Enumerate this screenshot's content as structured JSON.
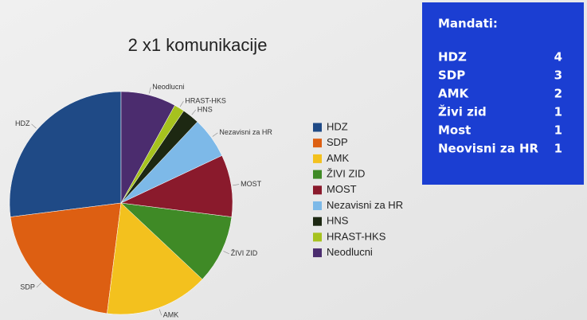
{
  "chart_data": {
    "type": "pie",
    "title": "2 x1 komunikacije",
    "categories": [
      "HDZ",
      "SDP",
      "AMK",
      "ŽIVI ZID",
      "MOST",
      "Nezavisni za HR",
      "HNS",
      "HRAST-HKS",
      "Neodlucni"
    ],
    "values": [
      27,
      21,
      15,
      10,
      9,
      6,
      2.5,
      1.5,
      8
    ],
    "colors": [
      "#1f4a86",
      "#dd5f12",
      "#f3c11e",
      "#3f8a26",
      "#8a1a2c",
      "#7db9e8",
      "#1d2812",
      "#a6c21e",
      "#4b2c6e"
    ]
  },
  "panel": {
    "title": "Mandati:",
    "rows": [
      [
        "HDZ",
        4
      ],
      [
        "SDP",
        3
      ],
      [
        "AMK",
        2
      ],
      [
        "Živi zid",
        1
      ],
      [
        "Most",
        1
      ],
      [
        "Neovisni za HR",
        1
      ]
    ]
  }
}
